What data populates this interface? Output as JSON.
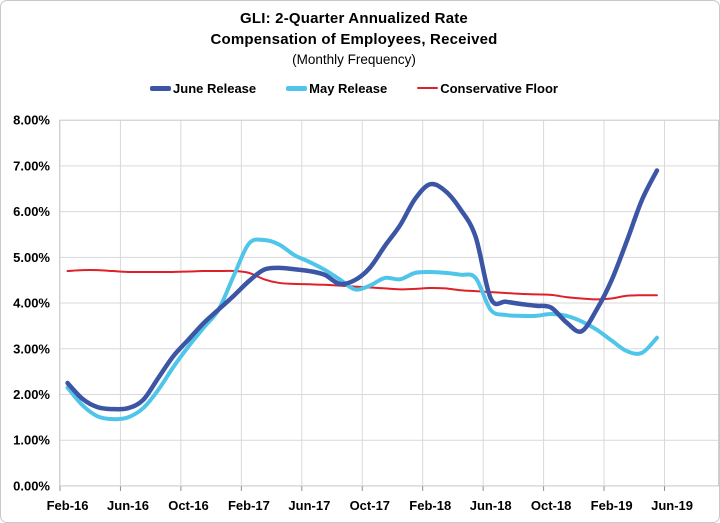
{
  "header": {
    "title_line1": "GLI: 2-Quarter Annualized Rate",
    "title_line2": "Compensation of Employees, Received",
    "title_line3": "(Monthly Frequency)"
  },
  "legend": {
    "items": [
      {
        "id": "june-release",
        "label": "June Release",
        "color": "#3C56A5",
        "swatch_height": 5
      },
      {
        "id": "may-release",
        "label": "May Release",
        "color": "#4FC5E9",
        "swatch_height": 5
      },
      {
        "id": "conservative-floor",
        "label": "Conservative Floor",
        "color": "#DE2128",
        "swatch_height": 2
      }
    ]
  },
  "chart_data": {
    "type": "line",
    "title": "GLI: 2-Quarter Annualized Rate",
    "subtitle": "Compensation of Employees, Received",
    "note": "(Monthly Frequency)",
    "grid": true,
    "legend_position": "top",
    "smoothed_lines": true,
    "ylim": [
      0,
      8
    ],
    "y_tick_labels": [
      "0.00%",
      "1.00%",
      "2.00%",
      "3.00%",
      "4.00%",
      "5.00%",
      "6.00%",
      "7.00%",
      "8.00%"
    ],
    "x_tick_labels": [
      "Feb-16",
      "Jun-16",
      "Oct-16",
      "Feb-17",
      "Jun-17",
      "Oct-17",
      "Feb-18",
      "Jun-18",
      "Oct-18",
      "Feb-19",
      "Jun-19"
    ],
    "months": [
      "Feb-16",
      "Mar-16",
      "Apr-16",
      "May-16",
      "Jun-16",
      "Jul-16",
      "Aug-16",
      "Sep-16",
      "Oct-16",
      "Nov-16",
      "Dec-16",
      "Jan-17",
      "Feb-17",
      "Mar-17",
      "Apr-17",
      "May-17",
      "Jun-17",
      "Jul-17",
      "Aug-17",
      "Sep-17",
      "Oct-17",
      "Nov-17",
      "Dec-17",
      "Jan-18",
      "Feb-18",
      "Mar-18",
      "Apr-18",
      "May-18",
      "Jun-18",
      "Jul-18",
      "Aug-18",
      "Sep-18",
      "Oct-18",
      "Nov-18",
      "Dec-18",
      "Jan-19",
      "Feb-19",
      "Mar-19",
      "Apr-19",
      "May-19"
    ],
    "unit": "percent",
    "series": [
      {
        "id": "conservative-floor",
        "name": "Conservative Floor",
        "color": "#DE2128",
        "width": 2,
        "values": [
          4.7,
          4.72,
          4.72,
          4.7,
          4.68,
          4.68,
          4.68,
          4.68,
          4.69,
          4.7,
          4.7,
          4.7,
          4.66,
          4.52,
          4.44,
          4.42,
          4.41,
          4.4,
          4.38,
          4.36,
          4.34,
          4.32,
          4.3,
          4.31,
          4.33,
          4.32,
          4.28,
          4.26,
          4.24,
          4.22,
          4.2,
          4.19,
          4.18,
          4.13,
          4.1,
          4.08,
          4.1,
          4.16,
          4.17,
          4.17
        ]
      },
      {
        "id": "may-release",
        "name": "May Release",
        "color": "#4FC5E9",
        "width": 4,
        "values": [
          2.15,
          1.76,
          1.52,
          1.46,
          1.5,
          1.7,
          2.1,
          2.6,
          3.05,
          3.46,
          3.86,
          4.6,
          5.3,
          5.38,
          5.28,
          5.05,
          4.9,
          4.73,
          4.52,
          4.3,
          4.38,
          4.55,
          4.52,
          4.66,
          4.68,
          4.66,
          4.62,
          4.55,
          3.85,
          3.74,
          3.72,
          3.72,
          3.76,
          3.72,
          3.6,
          3.42,
          3.18,
          2.95,
          2.91,
          3.24
        ]
      },
      {
        "id": "june-release",
        "name": "June Release",
        "color": "#3C56A5",
        "width": 4.5,
        "values": [
          2.25,
          1.9,
          1.72,
          1.68,
          1.7,
          1.88,
          2.36,
          2.84,
          3.2,
          3.56,
          3.86,
          4.16,
          4.48,
          4.73,
          4.77,
          4.74,
          4.7,
          4.62,
          4.42,
          4.5,
          4.77,
          5.25,
          5.7,
          6.28,
          6.6,
          6.45,
          6.05,
          5.45,
          4.1,
          4.03,
          3.98,
          3.94,
          3.9,
          3.58,
          3.38,
          3.85,
          4.5,
          5.35,
          6.25,
          6.9
        ]
      }
    ],
    "colors": {
      "grid": "#d9d9d9",
      "plot_border": "#cfcfcf",
      "tick": "#8c8c8c",
      "text": "#000000",
      "background": "#ffffff"
    }
  }
}
